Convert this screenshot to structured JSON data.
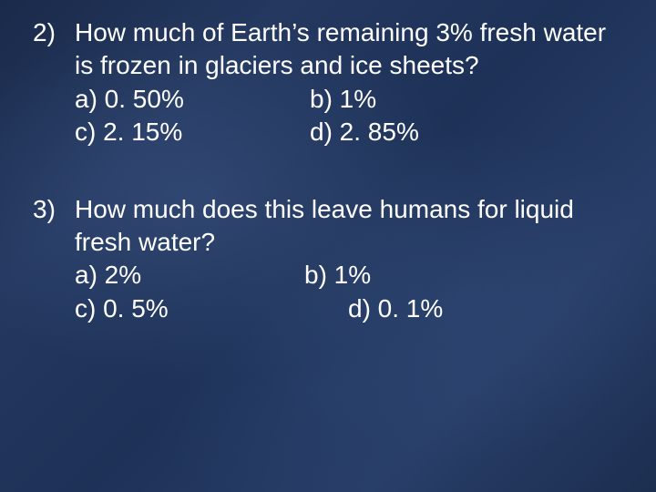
{
  "slide": {
    "background_base": "#203558",
    "text_color": "#ffffff",
    "font_family": "Verdana",
    "font_size_pt": 28
  },
  "questions": [
    {
      "number": "2)",
      "text": "How much of Earth’s remaining 3% fresh water is frozen in glaciers and ice sheets?",
      "options": {
        "a": "a) 0. 50%",
        "b": "b) 1%",
        "c": "c) 2. 15%",
        "d": "d) 2. 85%"
      }
    },
    {
      "number": "3)",
      "text": "How much does this leave humans for liquid fresh water?",
      "options": {
        "a": "a) 2%",
        "b": "b) 1%",
        "c": "c) 0. 5%",
        "d": "d) 0. 1%"
      }
    }
  ]
}
